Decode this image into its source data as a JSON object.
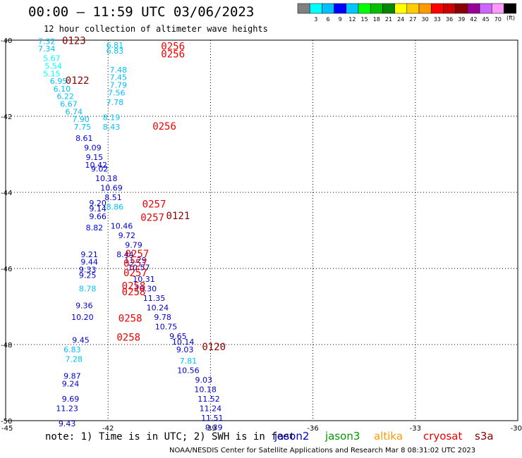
{
  "title": "00:00 – 11:59 UTC 03/06/2023",
  "subtitle": "12 hour collection of altimeter wave heights",
  "note": "note: 1) Time is in UTC; 2) SWH is in feet",
  "footer": "NOAA/NESDIS Center for Satellite Applications and Research    Mar  8 08:31:02 UTC 2023",
  "satellites": [
    {
      "name": "jason2",
      "color": "#0000cc"
    },
    {
      "name": "jason3",
      "color": "#009900"
    },
    {
      "name": "altika",
      "color": "#ff9900"
    },
    {
      "name": "cryosat",
      "color": "#ee0000"
    },
    {
      "name": "s3a",
      "color": "#880000"
    }
  ],
  "color_scale": {
    "unit": "(ft)",
    "colors": [
      "#808080",
      "#00ffff",
      "#00bfff",
      "#0000ff",
      "#00c8ff",
      "#00ff00",
      "#00c000",
      "#008800",
      "#ffff00",
      "#ffcc00",
      "#ff9900",
      "#ff0000",
      "#cc0000",
      "#880000",
      "#990099",
      "#cc66ff",
      "#ff99ff",
      "#000000"
    ],
    "labels": [
      "3",
      "6",
      "9",
      "12",
      "15",
      "18",
      "21",
      "24",
      "27",
      "30",
      "33",
      "36",
      "39",
      "42",
      "45",
      "70"
    ]
  },
  "chart_data": {
    "type": "scatter",
    "title": "00:00 – 11:59 UTC 03/06/2023",
    "subtitle": "12 hour collection of altimeter wave heights",
    "xlim": [
      -45,
      -30
    ],
    "ylim": [
      -50,
      -40
    ],
    "xticks": [
      "-45",
      "-42",
      "-39",
      "-36",
      "-33",
      "-30"
    ],
    "yticks": [
      "-40",
      "-42",
      "-44",
      "-46",
      "-48",
      "-50"
    ],
    "grid": true,
    "wave_heights": [
      {
        "x": -43.8,
        "y": -40.1,
        "v": "7.32",
        "c": "#00bfff"
      },
      {
        "x": -43.8,
        "y": -40.3,
        "v": "7.34",
        "c": "#00bfff"
      },
      {
        "x": -43.65,
        "y": -40.55,
        "v": "5.67",
        "c": "#00ffff"
      },
      {
        "x": -43.6,
        "y": -40.75,
        "v": "5.54",
        "c": "#00ffff"
      },
      {
        "x": -43.65,
        "y": -40.95,
        "v": "5.15",
        "c": "#00ffff"
      },
      {
        "x": -43.45,
        "y": -41.15,
        "v": "6.95",
        "c": "#00bfff"
      },
      {
        "x": -43.35,
        "y": -41.35,
        "v": "6.10",
        "c": "#00bfff"
      },
      {
        "x": -43.25,
        "y": -41.55,
        "v": "6.22",
        "c": "#00bfff"
      },
      {
        "x": -43.15,
        "y": -41.75,
        "v": "6.67",
        "c": "#00bfff"
      },
      {
        "x": -43.0,
        "y": -41.95,
        "v": "6.74",
        "c": "#00bfff"
      },
      {
        "x": -42.8,
        "y": -42.15,
        "v": "7.90",
        "c": "#00bfff"
      },
      {
        "x": -42.75,
        "y": -42.35,
        "v": "7.75",
        "c": "#00bfff"
      },
      {
        "x": -42.7,
        "y": -42.65,
        "v": "8.61",
        "c": "#0000ff"
      },
      {
        "x": -42.45,
        "y": -42.9,
        "v": "9.09",
        "c": "#0000cc"
      },
      {
        "x": -42.4,
        "y": -43.15,
        "v": "9.15",
        "c": "#0000cc"
      },
      {
        "x": -42.35,
        "y": -43.35,
        "v": "10.42",
        "c": "#0000cc"
      },
      {
        "x": -42.25,
        "y": -43.45,
        "v": "9.02",
        "c": "#0000cc"
      },
      {
        "x": -42.05,
        "y": -43.7,
        "v": "10.18",
        "c": "#0000cc"
      },
      {
        "x": -41.9,
        "y": -43.95,
        "v": "10.69",
        "c": "#0000cc"
      },
      {
        "x": -42.3,
        "y": -44.35,
        "v": "9.20",
        "c": "#0000cc"
      },
      {
        "x": -42.3,
        "y": -44.5,
        "v": "9.14",
        "c": "#0000cc"
      },
      {
        "x": -42.3,
        "y": -44.7,
        "v": "9.66",
        "c": "#0000cc"
      },
      {
        "x": -42.4,
        "y": -45.0,
        "v": "8.82",
        "c": "#0000ff"
      },
      {
        "x": -41.6,
        "y": -44.95,
        "v": "10.46",
        "c": "#0000cc"
      },
      {
        "x": -41.45,
        "y": -45.2,
        "v": "9.72",
        "c": "#0000cc"
      },
      {
        "x": -41.25,
        "y": -45.45,
        "v": "9.79",
        "c": "#0000cc"
      },
      {
        "x": -42.55,
        "y": -45.7,
        "v": "9.21",
        "c": "#0000cc"
      },
      {
        "x": -42.55,
        "y": -45.9,
        "v": "9.44",
        "c": "#0000cc"
      },
      {
        "x": -42.6,
        "y": -46.1,
        "v": "9.33",
        "c": "#0000cc"
      },
      {
        "x": -42.6,
        "y": -46.25,
        "v": "9.25",
        "c": "#0000cc"
      },
      {
        "x": -41.2,
        "y": -45.85,
        "v": "11.29",
        "c": "#0000cc"
      },
      {
        "x": -41.1,
        "y": -46.05,
        "v": "10.57",
        "c": "#0000cc"
      },
      {
        "x": -40.95,
        "y": -46.35,
        "v": "10.31",
        "c": "#0000cc"
      },
      {
        "x": -40.9,
        "y": -46.6,
        "v": "10.30",
        "c": "#0000cc"
      },
      {
        "x": -40.65,
        "y": -46.85,
        "v": "11.35",
        "c": "#0000cc"
      },
      {
        "x": -40.55,
        "y": -47.1,
        "v": "10.24",
        "c": "#0000cc"
      },
      {
        "x": -42.6,
        "y": -46.6,
        "v": "8.78",
        "c": "#00bfff"
      },
      {
        "x": -42.7,
        "y": -47.05,
        "v": "9.36",
        "c": "#0000cc"
      },
      {
        "x": -42.75,
        "y": -47.35,
        "v": "10.20",
        "c": "#0000cc"
      },
      {
        "x": -40.4,
        "y": -47.35,
        "v": "9.78",
        "c": "#0000cc"
      },
      {
        "x": -40.3,
        "y": -47.6,
        "v": "10.75",
        "c": "#0000cc"
      },
      {
        "x": -39.95,
        "y": -47.85,
        "v": "9.65",
        "c": "#0000cc"
      },
      {
        "x": -39.8,
        "y": -48.0,
        "v": "10.14",
        "c": "#0000cc"
      },
      {
        "x": -39.75,
        "y": -48.2,
        "v": "9.03",
        "c": "#0000cc"
      },
      {
        "x": -42.8,
        "y": -47.95,
        "v": "9.45",
        "c": "#0000cc"
      },
      {
        "x": -43.05,
        "y": -48.2,
        "v": "6.83",
        "c": "#00bfff"
      },
      {
        "x": -43.0,
        "y": -48.45,
        "v": "7.28",
        "c": "#00bfff"
      },
      {
        "x": -39.65,
        "y": -48.5,
        "v": "7.81",
        "c": "#00bfff"
      },
      {
        "x": -39.65,
        "y": -48.75,
        "v": "10.56",
        "c": "#0000cc"
      },
      {
        "x": -39.2,
        "y": -49.0,
        "v": "9.03",
        "c": "#0000cc"
      },
      {
        "x": -39.15,
        "y": -49.25,
        "v": "10.18",
        "c": "#0000cc"
      },
      {
        "x": -39.05,
        "y": -49.5,
        "v": "11.52",
        "c": "#0000cc"
      },
      {
        "x": -39.0,
        "y": -49.75,
        "v": "11.24",
        "c": "#0000cc"
      },
      {
        "x": -38.95,
        "y": -50.0,
        "v": "11.51",
        "c": "#0000cc"
      },
      {
        "x": -38.9,
        "y": -50.25,
        "v": "9.39",
        "c": "#0000cc"
      },
      {
        "x": -43.05,
        "y": -48.9,
        "v": "9.87",
        "c": "#0000cc"
      },
      {
        "x": -43.1,
        "y": -49.1,
        "v": "9.24",
        "c": "#0000cc"
      },
      {
        "x": -43.1,
        "y": -49.5,
        "v": "9.69",
        "c": "#0000cc"
      },
      {
        "x": -43.2,
        "y": -49.75,
        "v": "11.23",
        "c": "#0000cc"
      },
      {
        "x": -43.2,
        "y": -50.15,
        "v": "9.43",
        "c": "#0000cc"
      },
      {
        "x": -41.8,
        "y": -40.2,
        "v": "6.81",
        "c": "#00bfff"
      },
      {
        "x": -41.8,
        "y": -40.35,
        "v": "6.83",
        "c": "#00bfff"
      },
      {
        "x": -41.7,
        "y": -40.85,
        "v": "7.48",
        "c": "#00bfff"
      },
      {
        "x": -41.7,
        "y": -41.05,
        "v": "7.45",
        "c": "#00bfff"
      },
      {
        "x": -41.7,
        "y": -41.25,
        "v": "7.79",
        "c": "#00bfff"
      },
      {
        "x": -41.75,
        "y": -41.45,
        "v": "7.56",
        "c": "#00bfff"
      },
      {
        "x": -41.8,
        "y": -41.7,
        "v": "7.78",
        "c": "#00bfff"
      },
      {
        "x": -41.9,
        "y": -42.1,
        "v": "8.19",
        "c": "#00bfff"
      },
      {
        "x": -41.9,
        "y": -42.35,
        "v": "8.43",
        "c": "#00bfff"
      },
      {
        "x": -41.85,
        "y": -44.2,
        "v": "8.51",
        "c": "#0000cc"
      },
      {
        "x": -41.8,
        "y": -44.45,
        "v": "8.86",
        "c": "#00bfff"
      },
      {
        "x": -41.5,
        "y": -45.7,
        "v": "8.44",
        "c": "#0000cc"
      }
    ],
    "pass_times": [
      {
        "x": -43.0,
        "y": -40.1,
        "t": "0123",
        "c": "#880000"
      },
      {
        "x": -40.1,
        "y": -40.25,
        "t": "0256",
        "c": "#ee0000"
      },
      {
        "x": -40.1,
        "y": -40.45,
        "t": "0256",
        "c": "#ee0000"
      },
      {
        "x": -42.9,
        "y": -41.15,
        "t": "0122",
        "c": "#880000"
      },
      {
        "x": -40.35,
        "y": -42.35,
        "t": "0256",
        "c": "#ee0000"
      },
      {
        "x": -40.65,
        "y": -44.4,
        "t": "0257",
        "c": "#ee0000"
      },
      {
        "x": -40.7,
        "y": -44.75,
        "t": "0257",
        "c": "#ee0000"
      },
      {
        "x": -39.95,
        "y": -44.7,
        "t": "0121",
        "c": "#880000"
      },
      {
        "x": -41.15,
        "y": -45.7,
        "t": "0257",
        "c": "#ee0000"
      },
      {
        "x": -41.2,
        "y": -45.95,
        "t": "0257",
        "c": "#ee0000"
      },
      {
        "x": -41.2,
        "y": -46.2,
        "t": "0257",
        "c": "#ee0000"
      },
      {
        "x": -41.25,
        "y": -46.55,
        "t": "0258",
        "c": "#ee0000"
      },
      {
        "x": -41.25,
        "y": -46.7,
        "t": "0258",
        "c": "#ee0000"
      },
      {
        "x": -41.35,
        "y": -47.4,
        "t": "0258",
        "c": "#ee0000"
      },
      {
        "x": -41.4,
        "y": -47.9,
        "t": "0258",
        "c": "#ee0000"
      },
      {
        "x": -38.9,
        "y": -48.15,
        "t": "0120",
        "c": "#880000"
      }
    ]
  }
}
